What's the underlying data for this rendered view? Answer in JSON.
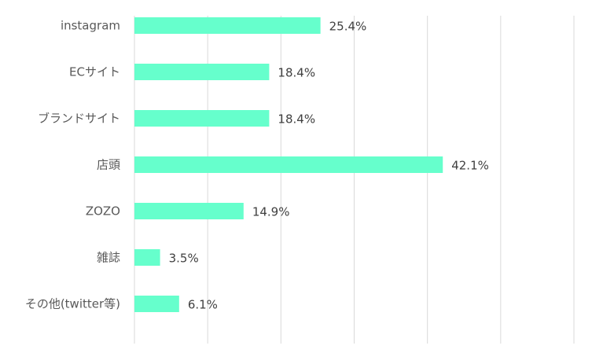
{
  "chart_data": {
    "type": "bar",
    "orientation": "horizontal",
    "categories": [
      "instagram",
      "ECサイト",
      "ブランドサイト",
      "店頭",
      "ZOZO",
      "雑誌",
      "その他(twitter等)"
    ],
    "values": [
      25.4,
      18.4,
      18.4,
      42.1,
      14.9,
      3.5,
      6.1
    ],
    "value_labels": [
      "25.4%",
      "18.4%",
      "18.4%",
      "42.1%",
      "14.9%",
      "3.5%",
      "6.1%"
    ],
    "xlim": [
      0,
      60
    ],
    "grid": true,
    "title": "",
    "xlabel": "",
    "ylabel": "",
    "colors": {
      "bar": "#66FFCC",
      "grid": "#D9D9D9",
      "category_text": "#595959",
      "value_text": "#404040",
      "background": "#FFFFFF"
    }
  }
}
